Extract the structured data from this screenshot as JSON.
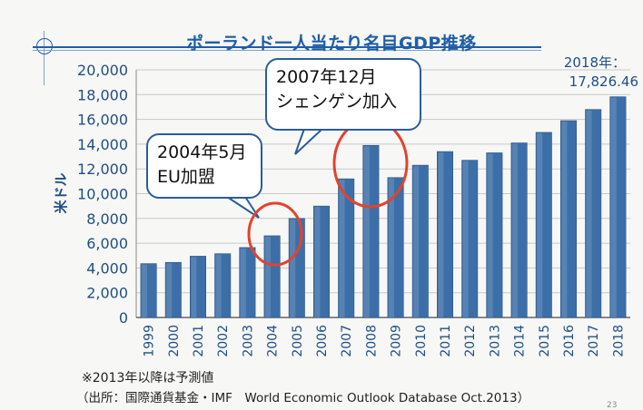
{
  "title": "ポーランド一人当たり名目GDP推移",
  "chart_data": {
    "type": "bar",
    "title": "ポーランド一人当たり名目GDP推移",
    "ylabel": "米ドル",
    "xlabel": "",
    "ylim": [
      0,
      20000
    ],
    "ytick_labels": [
      "0",
      "2,000",
      "4,000",
      "6,000",
      "8,000",
      "10,000",
      "12,000",
      "14,000",
      "16,000",
      "18,000",
      "20,000"
    ],
    "categories": [
      "1999",
      "2000",
      "2001",
      "2002",
      "2003",
      "2004",
      "2005",
      "2006",
      "2007",
      "2008",
      "2009",
      "2010",
      "2011",
      "2012",
      "2013",
      "2014",
      "2015",
      "2016",
      "2017",
      "2018"
    ],
    "values": [
      4350,
      4450,
      4950,
      5150,
      5650,
      6600,
      8000,
      9000,
      11200,
      13900,
      11300,
      12300,
      13400,
      12700,
      13300,
      14100,
      14950,
      15900,
      16800,
      17826.46
    ],
    "bar_color": "#3c6fa8",
    "value_annotation": {
      "line1": "2018年：",
      "line2": "17,826.46"
    },
    "annotations": [
      {
        "line1": "2004年5月",
        "line2": "EU加盟",
        "target": "2004"
      },
      {
        "line1": "2007年12月",
        "line2": "シェンゲン加入",
        "target": "2008"
      }
    ]
  },
  "notes": {
    "forecast": "※2013年以降は予測値",
    "source": "（出所：国際通貨基金・IMF　World Economic Outlook Database Oct.2013）"
  },
  "page_number": "23"
}
